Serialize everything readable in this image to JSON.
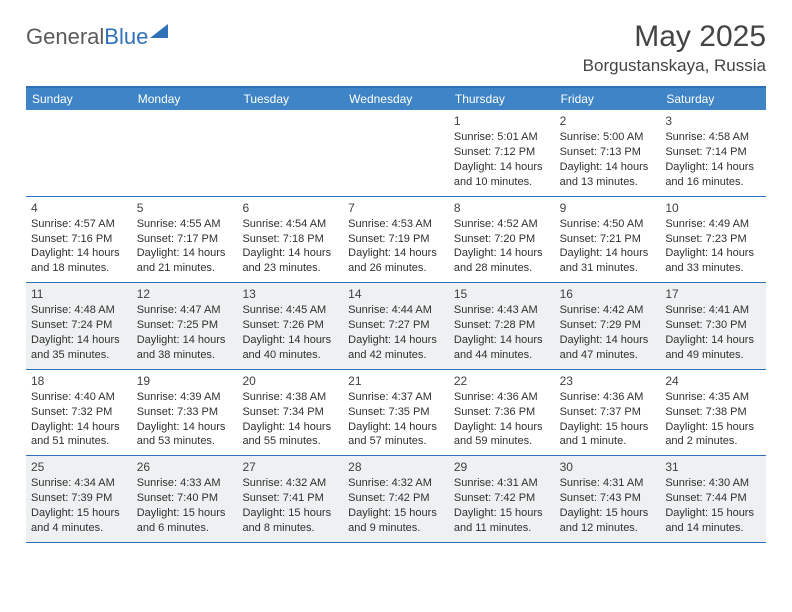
{
  "colors": {
    "header_bg": "#3e84c6",
    "rule": "#2f71b8",
    "shade_bg": "#eef0f1",
    "text": "#303030",
    "title": "#444444",
    "logo_gray": "#5b5b5b",
    "logo_blue": "#2f71b8",
    "white": "#ffffff"
  },
  "typography": {
    "title_fontsize": 30,
    "location_fontsize": 17,
    "dayhead_fontsize": 12,
    "cell_fontsize": 11,
    "logo_fontsize": 22
  },
  "logo": {
    "part1": "General",
    "part2": "Blue"
  },
  "title": "May 2025",
  "location": "Borgustanskaya, Russia",
  "dayheads": [
    "Sunday",
    "Monday",
    "Tuesday",
    "Wednesday",
    "Thursday",
    "Friday",
    "Saturday"
  ],
  "weeks": [
    [
      {
        "num": "",
        "lines": []
      },
      {
        "num": "",
        "lines": []
      },
      {
        "num": "",
        "lines": []
      },
      {
        "num": "",
        "lines": []
      },
      {
        "num": "1",
        "lines": [
          "Sunrise: 5:01 AM",
          "Sunset: 7:12 PM",
          "Daylight: 14 hours and 10 minutes."
        ]
      },
      {
        "num": "2",
        "lines": [
          "Sunrise: 5:00 AM",
          "Sunset: 7:13 PM",
          "Daylight: 14 hours and 13 minutes."
        ]
      },
      {
        "num": "3",
        "lines": [
          "Sunrise: 4:58 AM",
          "Sunset: 7:14 PM",
          "Daylight: 14 hours and 16 minutes."
        ]
      }
    ],
    [
      {
        "num": "4",
        "lines": [
          "Sunrise: 4:57 AM",
          "Sunset: 7:16 PM",
          "Daylight: 14 hours and 18 minutes."
        ]
      },
      {
        "num": "5",
        "lines": [
          "Sunrise: 4:55 AM",
          "Sunset: 7:17 PM",
          "Daylight: 14 hours and 21 minutes."
        ]
      },
      {
        "num": "6",
        "lines": [
          "Sunrise: 4:54 AM",
          "Sunset: 7:18 PM",
          "Daylight: 14 hours and 23 minutes."
        ]
      },
      {
        "num": "7",
        "lines": [
          "Sunrise: 4:53 AM",
          "Sunset: 7:19 PM",
          "Daylight: 14 hours and 26 minutes."
        ]
      },
      {
        "num": "8",
        "lines": [
          "Sunrise: 4:52 AM",
          "Sunset: 7:20 PM",
          "Daylight: 14 hours and 28 minutes."
        ]
      },
      {
        "num": "9",
        "lines": [
          "Sunrise: 4:50 AM",
          "Sunset: 7:21 PM",
          "Daylight: 14 hours and 31 minutes."
        ]
      },
      {
        "num": "10",
        "lines": [
          "Sunrise: 4:49 AM",
          "Sunset: 7:23 PM",
          "Daylight: 14 hours and 33 minutes."
        ]
      }
    ],
    [
      {
        "num": "11",
        "lines": [
          "Sunrise: 4:48 AM",
          "Sunset: 7:24 PM",
          "Daylight: 14 hours and 35 minutes."
        ]
      },
      {
        "num": "12",
        "lines": [
          "Sunrise: 4:47 AM",
          "Sunset: 7:25 PM",
          "Daylight: 14 hours and 38 minutes."
        ]
      },
      {
        "num": "13",
        "lines": [
          "Sunrise: 4:45 AM",
          "Sunset: 7:26 PM",
          "Daylight: 14 hours and 40 minutes."
        ]
      },
      {
        "num": "14",
        "lines": [
          "Sunrise: 4:44 AM",
          "Sunset: 7:27 PM",
          "Daylight: 14 hours and 42 minutes."
        ]
      },
      {
        "num": "15",
        "lines": [
          "Sunrise: 4:43 AM",
          "Sunset: 7:28 PM",
          "Daylight: 14 hours and 44 minutes."
        ]
      },
      {
        "num": "16",
        "lines": [
          "Sunrise: 4:42 AM",
          "Sunset: 7:29 PM",
          "Daylight: 14 hours and 47 minutes."
        ]
      },
      {
        "num": "17",
        "lines": [
          "Sunrise: 4:41 AM",
          "Sunset: 7:30 PM",
          "Daylight: 14 hours and 49 minutes."
        ]
      }
    ],
    [
      {
        "num": "18",
        "lines": [
          "Sunrise: 4:40 AM",
          "Sunset: 7:32 PM",
          "Daylight: 14 hours and 51 minutes."
        ]
      },
      {
        "num": "19",
        "lines": [
          "Sunrise: 4:39 AM",
          "Sunset: 7:33 PM",
          "Daylight: 14 hours and 53 minutes."
        ]
      },
      {
        "num": "20",
        "lines": [
          "Sunrise: 4:38 AM",
          "Sunset: 7:34 PM",
          "Daylight: 14 hours and 55 minutes."
        ]
      },
      {
        "num": "21",
        "lines": [
          "Sunrise: 4:37 AM",
          "Sunset: 7:35 PM",
          "Daylight: 14 hours and 57 minutes."
        ]
      },
      {
        "num": "22",
        "lines": [
          "Sunrise: 4:36 AM",
          "Sunset: 7:36 PM",
          "Daylight: 14 hours and 59 minutes."
        ]
      },
      {
        "num": "23",
        "lines": [
          "Sunrise: 4:36 AM",
          "Sunset: 7:37 PM",
          "Daylight: 15 hours and 1 minute."
        ]
      },
      {
        "num": "24",
        "lines": [
          "Sunrise: 4:35 AM",
          "Sunset: 7:38 PM",
          "Daylight: 15 hours and 2 minutes."
        ]
      }
    ],
    [
      {
        "num": "25",
        "lines": [
          "Sunrise: 4:34 AM",
          "Sunset: 7:39 PM",
          "Daylight: 15 hours and 4 minutes."
        ]
      },
      {
        "num": "26",
        "lines": [
          "Sunrise: 4:33 AM",
          "Sunset: 7:40 PM",
          "Daylight: 15 hours and 6 minutes."
        ]
      },
      {
        "num": "27",
        "lines": [
          "Sunrise: 4:32 AM",
          "Sunset: 7:41 PM",
          "Daylight: 15 hours and 8 minutes."
        ]
      },
      {
        "num": "28",
        "lines": [
          "Sunrise: 4:32 AM",
          "Sunset: 7:42 PM",
          "Daylight: 15 hours and 9 minutes."
        ]
      },
      {
        "num": "29",
        "lines": [
          "Sunrise: 4:31 AM",
          "Sunset: 7:42 PM",
          "Daylight: 15 hours and 11 minutes."
        ]
      },
      {
        "num": "30",
        "lines": [
          "Sunrise: 4:31 AM",
          "Sunset: 7:43 PM",
          "Daylight: 15 hours and 12 minutes."
        ]
      },
      {
        "num": "31",
        "lines": [
          "Sunrise: 4:30 AM",
          "Sunset: 7:44 PM",
          "Daylight: 15 hours and 14 minutes."
        ]
      }
    ]
  ]
}
